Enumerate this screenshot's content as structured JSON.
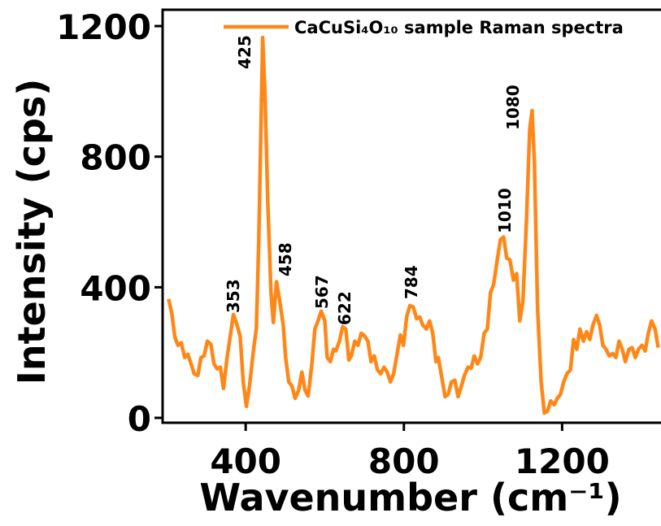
{
  "chart_data": {
    "type": "line",
    "xlabel": "Wavenumber (cm⁻¹)",
    "ylabel": "Intensity (cps)",
    "xlim": [
      190,
      1450
    ],
    "ylim": [
      -15,
      1250
    ],
    "xticks": [
      400,
      800,
      1200
    ],
    "yticks": [
      0,
      400,
      800,
      1200
    ],
    "legend": "upper right",
    "annotations": [
      "353",
      "425",
      "458",
      "567",
      "622",
      "784",
      "1010",
      "1080"
    ],
    "x": [
      205,
      213,
      221,
      229,
      237,
      246,
      254,
      262,
      270,
      279,
      287,
      295,
      303,
      312,
      320,
      328,
      336,
      344,
      353,
      361,
      369,
      377,
      386,
      394,
      402,
      410,
      419,
      427,
      433,
      439,
      443,
      449,
      456,
      464,
      470,
      478,
      486,
      495,
      501,
      509,
      517,
      525,
      534,
      542,
      550,
      558,
      567,
      575,
      583,
      591,
      600,
      606,
      614,
      622,
      628,
      637,
      645,
      653,
      661,
      667,
      676,
      684,
      692,
      700,
      709,
      717,
      725,
      733,
      741,
      750,
      758,
      766,
      774,
      783,
      791,
      799,
      807,
      815,
      824,
      832,
      840,
      848,
      857,
      865,
      873,
      881,
      887,
      896,
      904,
      912,
      920,
      929,
      937,
      945,
      953,
      962,
      970,
      978,
      986,
      994,
      1003,
      1011,
      1019,
      1027,
      1036,
      1044,
      1052,
      1060,
      1068,
      1077,
      1085,
      1093,
      1101,
      1110,
      1118,
      1124,
      1130,
      1138,
      1147,
      1155,
      1163,
      1171,
      1180,
      1188,
      1196,
      1204,
      1212,
      1221,
      1229,
      1237,
      1245,
      1254,
      1262,
      1270,
      1278,
      1287,
      1295,
      1303,
      1311,
      1319,
      1328,
      1336,
      1344,
      1352,
      1360,
      1369,
      1377,
      1385,
      1393,
      1402,
      1410,
      1418,
      1426,
      1435,
      1443
    ],
    "series": [
      {
        "name": "CaCuSi₄O₁₀ sample Raman spectra",
        "color": "#ff8717",
        "values": [
          364,
          322,
          247,
          222,
          230,
          185,
          195,
          165,
          135,
          130,
          185,
          190,
          235,
          225,
          165,
          150,
          155,
          90,
          185,
          250,
          317,
          289,
          250,
          110,
          35,
          100,
          200,
          274,
          534,
          908,
          1165,
          983,
          659,
          384,
          292,
          417,
          359,
          284,
          185,
          110,
          97,
          60,
          85,
          140,
          85,
          67,
          160,
          272,
          297,
          327,
          297,
          185,
          172,
          210,
          205,
          235,
          279,
          272,
          177,
          190,
          235,
          222,
          259,
          252,
          235,
          172,
          190,
          147,
          135,
          155,
          140,
          110,
          135,
          197,
          254,
          222,
          309,
          344,
          339,
          304,
          309,
          284,
          272,
          297,
          259,
          172,
          185,
          122,
          65,
          72,
          110,
          115,
          65,
          95,
          130,
          155,
          152,
          190,
          165,
          185,
          259,
          272,
          384,
          409,
          484,
          546,
          554,
          489,
          484,
          422,
          442,
          297,
          359,
          609,
          883,
          941,
          783,
          334,
          110,
          15,
          20,
          52,
          40,
          60,
          72,
          110,
          135,
          147,
          240,
          210,
          272,
          235,
          264,
          240,
          284,
          314,
          284,
          222,
          210,
          190,
          197,
          185,
          235,
          210,
          172,
          210,
          215,
          185,
          210,
          222,
          205,
          259,
          297,
          272,
          215
        ]
      }
    ]
  }
}
